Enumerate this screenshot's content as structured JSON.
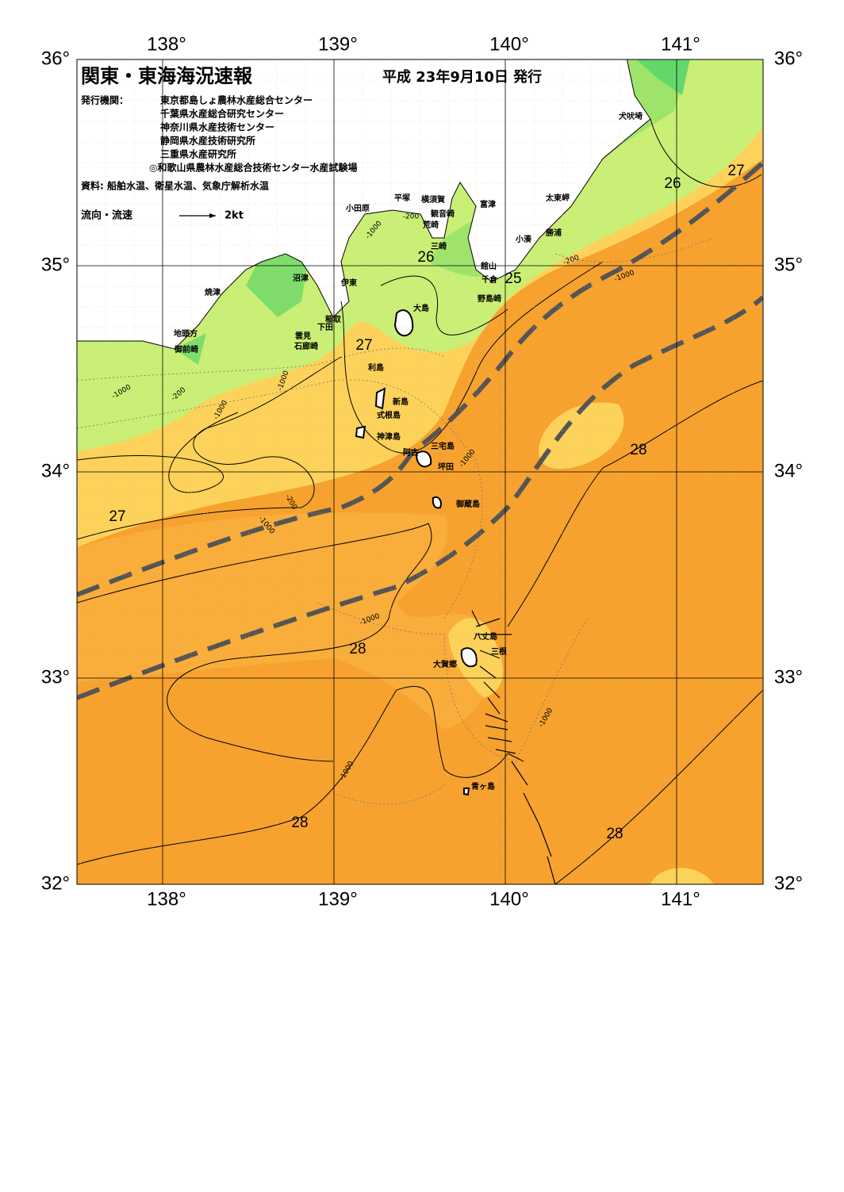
{
  "header": {
    "title": "関東・東海海況速報",
    "date": "平成 23年9月10日 発行",
    "publisher_label": "発行機関：",
    "publishers": [
      "東京都島しょ農林水産総合センター",
      "千葉県水産総合研究センター",
      "神奈川県水産技術センター",
      "静岡県水産技術研究所",
      "三重県水産研究所",
      "◎和歌山県農林水産総合技術センター水産試験場"
    ],
    "source": "資料: 船舶水温、衛星水温、気象庁解析水温",
    "legend_label": "流向・流速",
    "legend_scale": "2kt"
  },
  "grid": {
    "longitude": [
      {
        "value": 138,
        "label": "138°"
      },
      {
        "value": 139,
        "label": "139°"
      },
      {
        "value": 140,
        "label": "140°"
      },
      {
        "value": 141,
        "label": "141°"
      }
    ],
    "latitude": [
      {
        "value": 36,
        "label": "36°"
      },
      {
        "value": 35,
        "label": "35°"
      },
      {
        "value": 34,
        "label": "34°"
      },
      {
        "value": 33,
        "label": "33°"
      },
      {
        "value": 32,
        "label": "32°"
      }
    ]
  },
  "places": [
    "犬吠埼",
    "太東岬",
    "勝浦",
    "小湊",
    "館山",
    "千倉",
    "野島崎",
    "富津",
    "横須賀",
    "観音崎",
    "荒崎",
    "三崎",
    "平塚",
    "小田原",
    "沼津",
    "伊東",
    "焼津",
    "稲取",
    "下田",
    "雲見",
    "石廊崎",
    "地頭方",
    "御前崎",
    "大島",
    "利島",
    "新島",
    "式根島",
    "神津島",
    "三宅島",
    "阿古",
    "坪田",
    "御蔵島",
    "八丈島",
    "三根",
    "大賀郷",
    "青ヶ島"
  ],
  "contour_labels": [
    "26",
    "27",
    "26",
    "25",
    "27",
    "27",
    "28",
    "28",
    "28",
    "28",
    "-200",
    "-1000",
    "-200",
    "-1000",
    "-1000",
    "-200",
    "-1000",
    "-1000",
    "-200",
    "-1000",
    "-1000",
    "-1000",
    "-1000",
    "-1000"
  ]
}
